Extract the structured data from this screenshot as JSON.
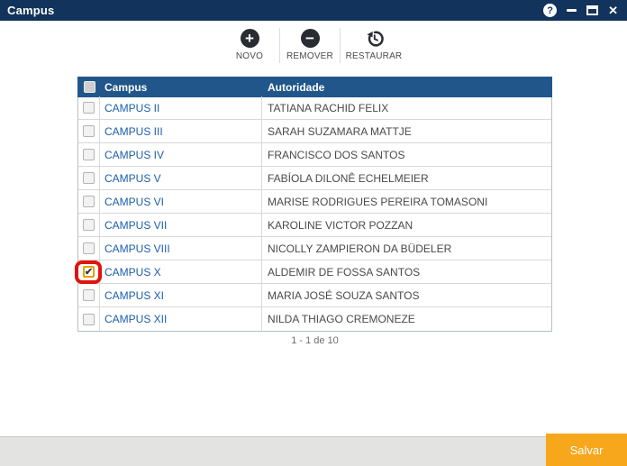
{
  "window": {
    "title": "Campus",
    "controls": {
      "help_glyph": "?",
      "close_glyph": "✕"
    }
  },
  "toolbar": {
    "buttons": [
      {
        "id": "novo",
        "label": "NOVO",
        "icon": "plus-circle-icon",
        "glyph": "+"
      },
      {
        "id": "remover",
        "label": "REMOVER",
        "icon": "minus-circle-icon",
        "glyph": "−"
      },
      {
        "id": "restaurar",
        "label": "RESTAURAR",
        "icon": "restore-history-icon"
      }
    ]
  },
  "table": {
    "columns": {
      "campus": "Campus",
      "autoridade": "Autoridade"
    },
    "check_glyph": "✔",
    "rows": [
      {
        "campus": "CAMPUS II",
        "autoridade": "TATIANA RACHID FELIX",
        "checked": false
      },
      {
        "campus": "CAMPUS III",
        "autoridade": "SARAH SUZAMARA MATTJE",
        "checked": false
      },
      {
        "campus": "CAMPUS IV",
        "autoridade": "FRANCISCO DOS SANTOS",
        "checked": false
      },
      {
        "campus": "CAMPUS V",
        "autoridade": "FABÍOLA DILONÊ ECHELMEIER",
        "checked": false
      },
      {
        "campus": "CAMPUS VI",
        "autoridade": "MARISE RODRIGUES PEREIRA TOMASONI",
        "checked": false
      },
      {
        "campus": "CAMPUS VII",
        "autoridade": "KAROLINE VICTOR POZZAN",
        "checked": false
      },
      {
        "campus": "CAMPUS VIII",
        "autoridade": "NICOLLY ZAMPIERON DA BÜDELER",
        "checked": false
      },
      {
        "campus": "CAMPUS X",
        "autoridade": "ALDEMIR DE FOSSA SANTOS",
        "checked": true,
        "highlighted": true
      },
      {
        "campus": "CAMPUS XI",
        "autoridade": "MARIA JOSÉ SOUZA SANTOS",
        "checked": false
      },
      {
        "campus": "CAMPUS XII",
        "autoridade": "NILDA THIAGO CREMONEZE",
        "checked": false
      }
    ],
    "pagination": "1 - 1 de 10"
  },
  "footer": {
    "save_label": "Salvar"
  },
  "colors": {
    "titlebar": "#12335B",
    "table_header": "#21568A",
    "campus_link": "#1C5EAC",
    "save_button": "#F7A71C",
    "annotation_ring": "#E0140C",
    "checked_checkbox_border": "#E89E04"
  }
}
